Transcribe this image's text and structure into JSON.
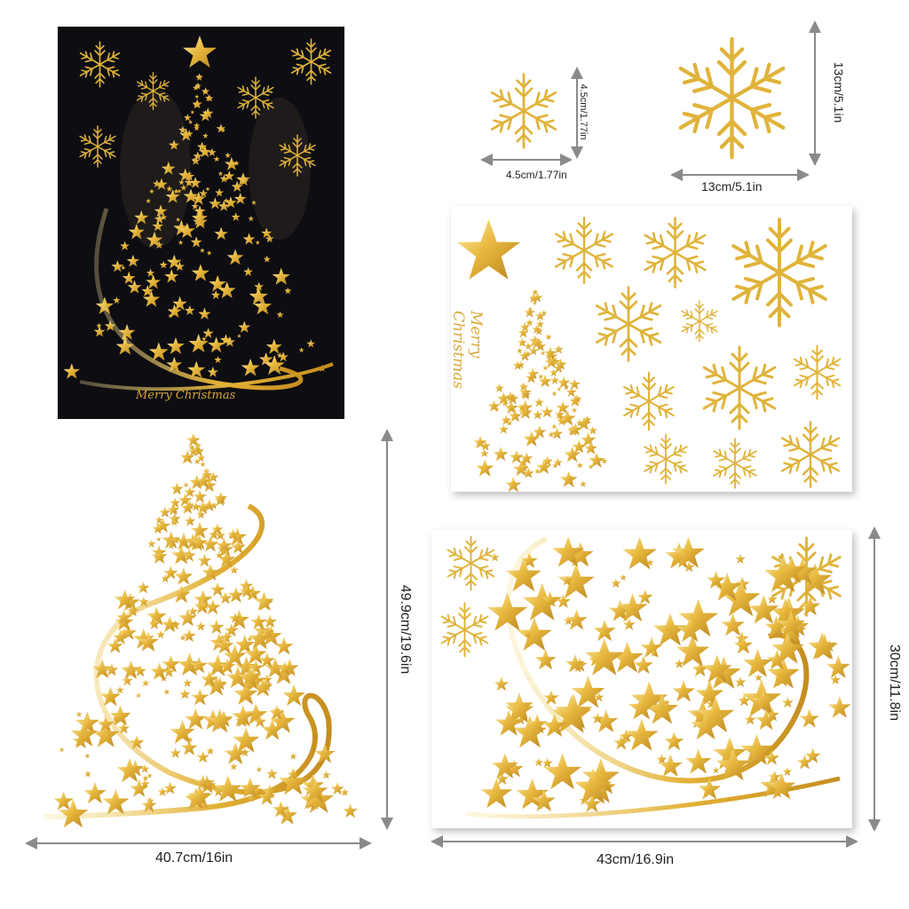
{
  "photo": {
    "greeting": "Merry  Christmas"
  },
  "sheet1": {
    "greeting_line1": "Merry",
    "greeting_line2": "Christmas"
  },
  "dimensions": {
    "small_snowflake_width": "4.5cm/1.77in",
    "small_snowflake_height": "4.5cm/1.77in",
    "large_snowflake_width": "13cm/5.1in",
    "large_snowflake_height": "13cm/5.1in",
    "tree_width": "40.7cm/16in",
    "tree_height": "49.9cm/19.6in",
    "sheet_width": "43cm/16.9in",
    "sheet_height": "30cm/11.8in"
  },
  "colors": {
    "gold": "#e0b33a",
    "gold_light": "#f6dc86",
    "gold_dark": "#b8821b",
    "photo_bg": "#0d0d12",
    "arrow": "#8a8a8a"
  },
  "icons": [
    "snowflake-icon",
    "star-icon",
    "tree-icon",
    "ribbon-swirl"
  ]
}
